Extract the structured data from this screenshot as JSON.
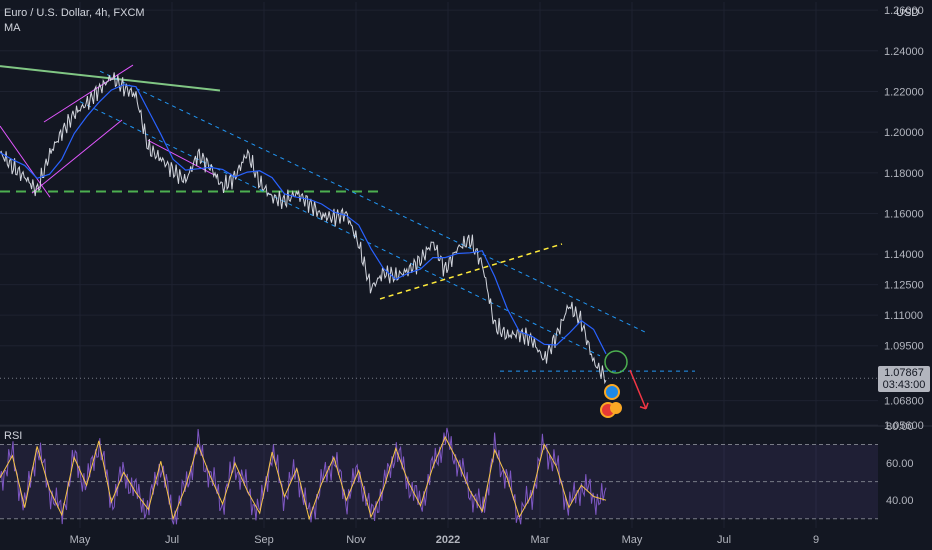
{
  "header": {
    "symbol": "Euro / U.S. Dollar, 4h, FXCM",
    "indicator": "MA",
    "currency": "USD",
    "rsi_label": "RSI"
  },
  "price_badge": {
    "price": "1.07867",
    "countdown": "03:43:00"
  },
  "colors": {
    "background": "#131722",
    "price": "#d1d4dc",
    "ma": "#2962ff",
    "rsi": "#7e57c2",
    "rsi_ma": "#f7c548",
    "trend_cyan": "#2196f3",
    "support_green": "#4caf50",
    "top_line_green": "#81c784",
    "channel_pink": "#e056fd",
    "yellow_trend": "#ffeb3b",
    "arrow_red": "#f23645"
  },
  "chart_data": [
    {
      "type": "line",
      "series": [
        {
          "values": [
            1.19,
            1.183,
            1.178,
            1.171,
            1.189,
            1.2,
            1.209,
            1.214,
            1.221,
            1.227,
            1.222,
            1.218,
            1.192,
            1.187,
            1.181,
            1.176,
            1.189,
            1.183,
            1.173,
            1.178,
            1.19,
            1.175,
            1.168,
            1.166,
            1.17,
            1.165,
            1.159,
            1.158,
            1.16,
            1.145,
            1.123,
            1.131,
            1.129,
            1.132,
            1.137,
            1.146,
            1.132,
            1.143,
            1.147,
            1.135,
            1.105,
            1.1,
            1.101,
            1.098,
            1.088,
            1.1,
            1.115,
            1.107,
            1.087,
            1.079
          ]
        }
      ],
      "x_ticks": [
        "May",
        "Jul",
        "Sep",
        "Nov",
        "2022",
        "Mar",
        "May",
        "Jul",
        "9"
      ],
      "y_ticks": [
        "1.26000",
        "1.24000",
        "1.22000",
        "1.20000",
        "1.18000",
        "1.16000",
        "1.14000",
        "1.12500",
        "1.11000",
        "1.09500",
        "1.06800",
        "1.05600"
      ],
      "ylim": [
        1.056,
        1.264
      ],
      "grid": true
    },
    {
      "type": "line",
      "series": [
        {
          "values": [
            52,
            64,
            36,
            69,
            46,
            32,
            63,
            48,
            72,
            39,
            55,
            44,
            35,
            61,
            30,
            47,
            70,
            53,
            38,
            60,
            45,
            33,
            66,
            42,
            57,
            30,
            49,
            63,
            40,
            56,
            31,
            46,
            68,
            50,
            37,
            58,
            74,
            61,
            45,
            34,
            67,
            52,
            31,
            43,
            70,
            58,
            36,
            48,
            42,
            40
          ]
        }
      ],
      "y_ticks": [
        "80.00",
        "60.00",
        "40.00"
      ],
      "ylim": [
        25,
        80
      ],
      "bands": [
        70,
        50,
        30
      ]
    }
  ]
}
